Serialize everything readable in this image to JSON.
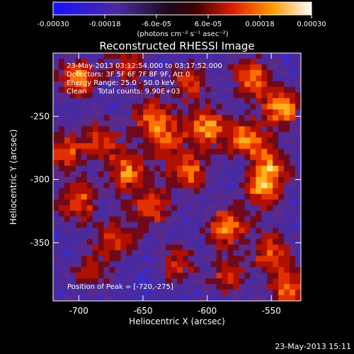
{
  "chart_data": {
    "type": "heatmap",
    "title": "Reconstructed RHESSI Image",
    "xlabel": "Heliocentric X (arcsec)",
    "ylabel": "Heliocentric Y (arcsec)",
    "xlim": [
      -720,
      -527
    ],
    "ylim": [
      -396,
      -200
    ],
    "x_ticks": [
      {
        "value": -700,
        "label": "-700"
      },
      {
        "value": -650,
        "label": "-650"
      },
      {
        "value": -600,
        "label": "-600"
      },
      {
        "value": -550,
        "label": "-550"
      }
    ],
    "y_ticks": [
      {
        "value": -250,
        "label": "-250"
      },
      {
        "value": -300,
        "label": "-300"
      },
      {
        "value": -350,
        "label": "-350"
      }
    ],
    "colorbar": {
      "min": -0.0003,
      "max": 0.0003,
      "unit_label": "(photons cm⁻² s⁻¹ asec⁻²)",
      "ticks": [
        {
          "value": -0.0003,
          "label": "-0.00030"
        },
        {
          "value": -0.00018,
          "label": "-0.00018"
        },
        {
          "value": -6e-05,
          "label": "-6.0e-05"
        },
        {
          "value": 6e-05,
          "label": "6.0e-05"
        },
        {
          "value": 0.00018,
          "label": "0.00018"
        },
        {
          "value": 0.0003,
          "label": "0.00030"
        }
      ]
    },
    "annotations": {
      "time_range": "23-May-2013 03:12:54.000 to 03:17:52.000",
      "detectors": "Detectors: 3F 5F 6F 7F 8F 9F, Att 0",
      "energy_range": "Energy Range: 25.0 - 50.0 keV",
      "clean_counts": "Clean     Total counts: 9.90E+03",
      "peak_position": "Position of Peak = [-720,-275]"
    },
    "footer_timestamp": "23-May-2013 15:11",
    "colors": {
      "background": "#000000",
      "negative": "#1a10ff",
      "neutral": "#5a2a8a",
      "positive_mid": "#e02000",
      "positive_high": "#ffff80",
      "max": "#ffffff"
    }
  }
}
